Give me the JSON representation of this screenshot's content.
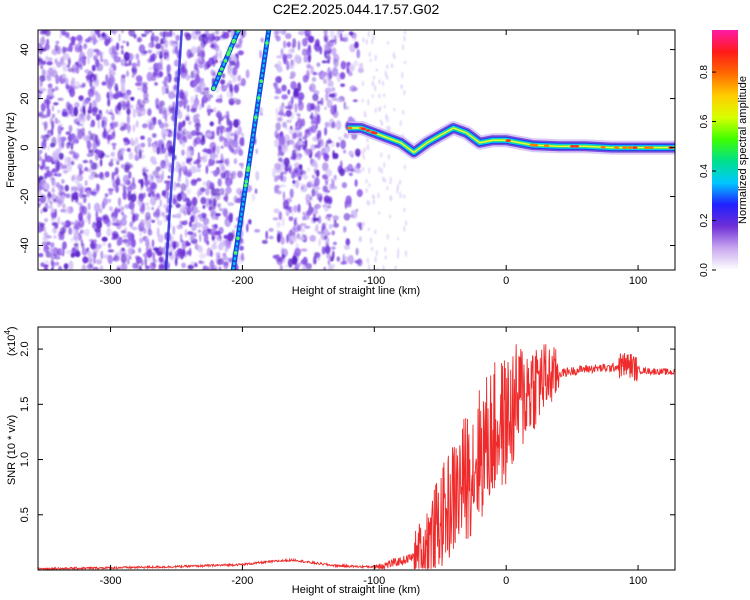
{
  "title": "C2E2.2025.044.17.57.G02",
  "chart_data": [
    {
      "type": "heatmap",
      "xlabel": "Height of straight line (km)",
      "ylabel": "Frequency (Hz)",
      "xlim": [
        -355,
        128
      ],
      "ylim": [
        -50,
        48
      ],
      "xticks": [
        -300,
        -200,
        -100,
        0,
        100
      ],
      "yticks": [
        -40,
        -20,
        0,
        20,
        40
      ],
      "colorbar": {
        "label": "Normalized spectral amplitude",
        "range": [
          0,
          0.97
        ],
        "ticks": [
          0.0,
          0.2,
          0.4,
          0.6,
          0.8
        ],
        "colors": [
          "#ffffff",
          "#c9a8f0",
          "#6f2fd6",
          "#2020ff",
          "#00c8ff",
          "#00e08a",
          "#40ff00",
          "#d8ff00",
          "#ffcc00",
          "#ff6a00",
          "#ff1a1a",
          "#ff1aa8"
        ]
      },
      "features": {
        "noise_region_x": [
          -355,
          -110
        ],
        "steep_line_x": [
          -258,
          -246
        ],
        "bright_line_segments": [
          {
            "x": [
              -207,
              -180
            ],
            "y": [
              -50,
              48
            ]
          },
          {
            "x": [
              -222,
              -203
            ],
            "y": [
              24,
              48
            ]
          }
        ],
        "narrow_band_track": {
          "x": [
            -120,
            -110,
            -100,
            -90,
            -80,
            -70,
            -60,
            -50,
            -40,
            -30,
            -20,
            -10,
            0,
            10,
            20,
            40,
            60,
            80,
            100,
            128
          ],
          "y": [
            8,
            8,
            6,
            4,
            2,
            -2,
            2,
            5,
            8,
            6,
            2,
            3,
            3,
            2,
            1,
            0.5,
            0.5,
            0,
            0,
            0
          ]
        }
      }
    },
    {
      "type": "line",
      "xlabel": "Height of straight line (km)",
      "ylabel": "SNR (10 * v/v)",
      "multiplier": "(x10",
      "multiplier_exp": "4",
      "multiplier_close": ")",
      "xlim": [
        -355,
        128
      ],
      "ylim": [
        0,
        2.2
      ],
      "xticks": [
        -300,
        -200,
        -100,
        0,
        100
      ],
      "yticks": [
        0.5,
        1.0,
        1.5,
        2.0
      ],
      "ytick_labels": [
        "0.5",
        "1.0",
        "1.5",
        "2.0"
      ],
      "color": "#ee2a2a",
      "x": [
        -355,
        -300,
        -250,
        -200,
        -175,
        -160,
        -150,
        -130,
        -110,
        -100,
        -90,
        -80,
        -70,
        -60,
        -50,
        -40,
        -30,
        -20,
        -10,
        0,
        10,
        20,
        30,
        40,
        50,
        60,
        80,
        90,
        95,
        100,
        110,
        128
      ],
      "values": [
        0.01,
        0.02,
        0.03,
        0.05,
        0.08,
        0.09,
        0.07,
        0.04,
        0.03,
        0.03,
        0.05,
        0.08,
        0.12,
        0.25,
        0.45,
        0.65,
        0.85,
        1.05,
        1.25,
        1.35,
        1.55,
        1.68,
        1.74,
        1.78,
        1.8,
        1.82,
        1.83,
        1.86,
        1.85,
        1.81,
        1.8,
        1.79
      ]
    }
  ]
}
